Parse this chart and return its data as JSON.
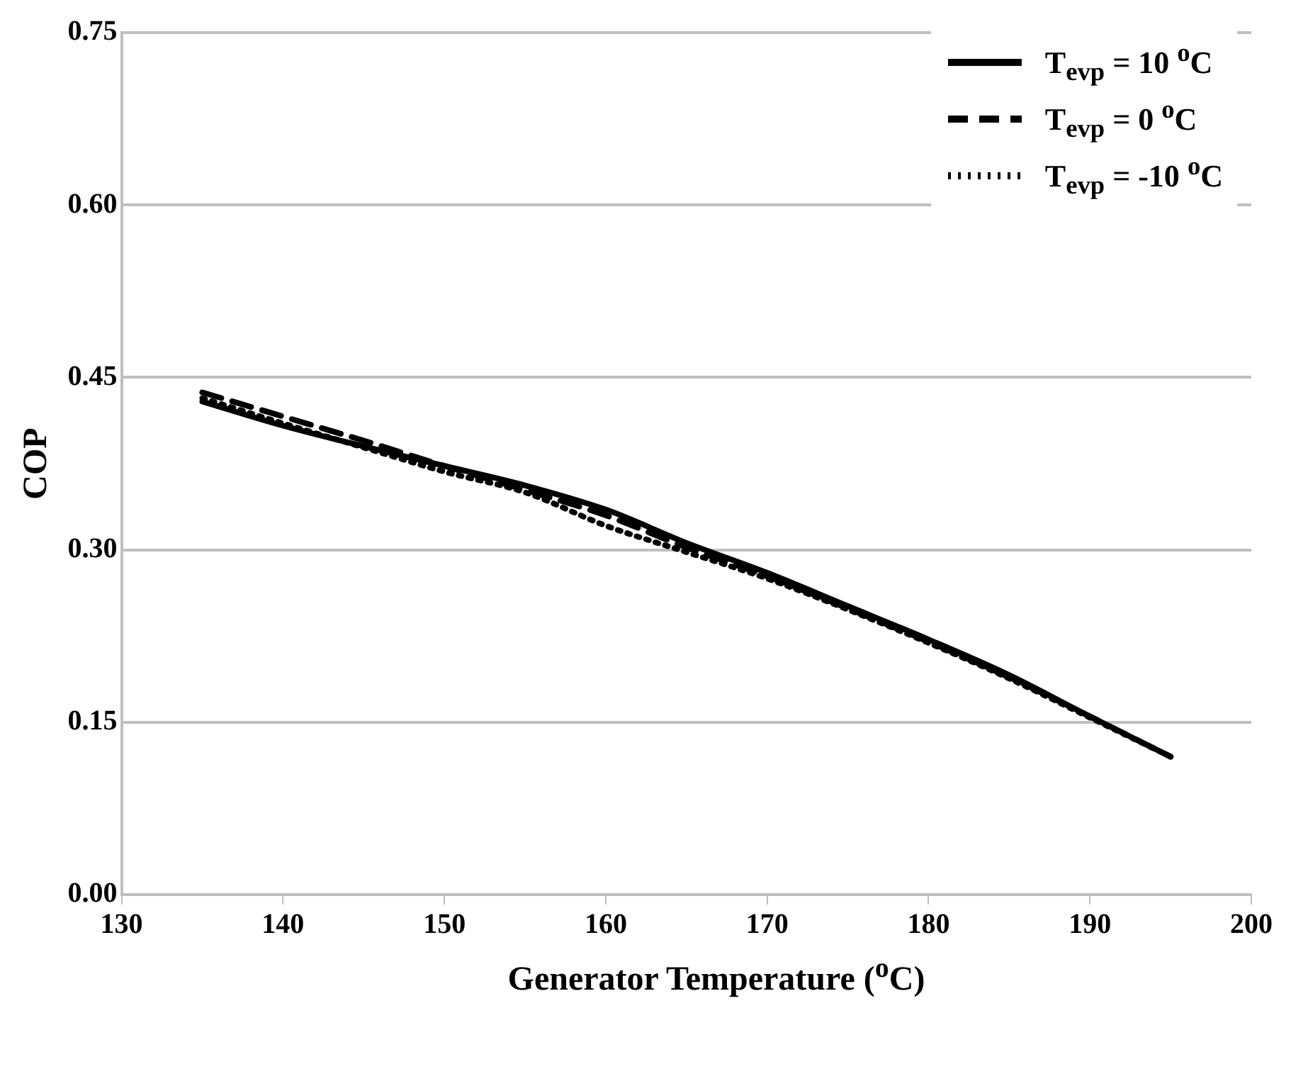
{
  "chart_data": {
    "type": "line",
    "xlabel": "Generator Temperature ($^{o}$C)",
    "ylabel": "COP",
    "x": [
      135,
      140,
      145,
      150,
      155,
      160,
      165,
      170,
      175,
      180,
      185,
      190,
      195
    ],
    "series": [
      {
        "name": "T$_{evp}$ = 10 $^{o}$C",
        "color": "#000000",
        "line_style": "solid",
        "values": [
          0.429,
          0.408,
          0.39,
          0.373,
          0.356,
          0.335,
          0.306,
          0.28,
          0.251,
          0.222,
          0.191,
          0.155,
          0.12
        ]
      },
      {
        "name": "T$_{evp}$ = 0 $^{o}$C",
        "color": "#000000",
        "line_style": "dashed",
        "values": [
          0.437,
          0.416,
          0.395,
          0.373,
          0.352,
          0.33,
          0.302,
          0.277,
          0.249,
          0.22,
          0.189,
          0.155,
          0.12
        ]
      },
      {
        "name": "T$_{evp}$ = -10 $^{o}$C",
        "color": "#000000",
        "line_style": "dotted",
        "values": [
          0.432,
          0.41,
          0.389,
          0.368,
          0.35,
          0.321,
          0.298,
          0.275,
          0.248,
          0.219,
          0.188,
          0.154,
          0.12
        ]
      }
    ],
    "xlim": [
      130,
      200
    ],
    "xticks": [
      130,
      140,
      150,
      160,
      170,
      180,
      190,
      200
    ],
    "ylim": [
      0,
      0.75
    ],
    "yticks": [
      {
        "value": 0,
        "label": "0.00"
      },
      {
        "value": 0.15,
        "label": "0.15"
      },
      {
        "value": 0.3,
        "label": "0.30"
      },
      {
        "value": 0.45,
        "label": "0.45"
      },
      {
        "value": 0.6,
        "label": "0.60"
      },
      {
        "value": 0.75,
        "label": "0.75"
      }
    ],
    "grid": "y",
    "legend": "top right",
    "marker": "none"
  }
}
